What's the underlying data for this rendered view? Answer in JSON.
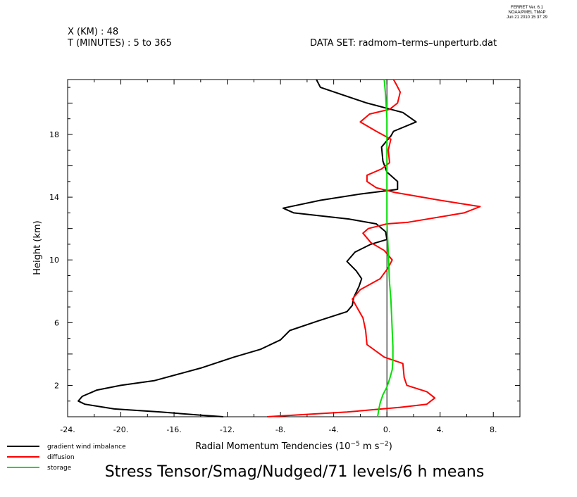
{
  "header": {
    "ferret_version": "FERRET Ver. 6.1",
    "ferret_org": "NOAA/PMEL TMAP",
    "ferret_date": "Jun 21 2010 15 37 29",
    "x_info": "X (KM) : 48",
    "t_info": "T (MINUTES) : 5 to 365",
    "dataset": "DATA SET: radmom–terms–unperturb.dat"
  },
  "chart_data": {
    "type": "line",
    "title": "Stress Tensor/Smag/Nudged/71 levels/6 h means",
    "xlabel_prefix": "Radial Momentum Tendencies (10",
    "xlabel_exp1": "−5",
    "xlabel_mid": " m s",
    "xlabel_exp2": "−2",
    "xlabel_suffix": ")",
    "ylabel": "Height (km)",
    "xlim": [
      -24,
      10
    ],
    "ylim": [
      0,
      21.5
    ],
    "x_tick_labels": [
      {
        "value": -24,
        "label": "-24."
      },
      {
        "value": -20,
        "label": "-20."
      },
      {
        "value": -16,
        "label": "-16."
      },
      {
        "value": -12,
        "label": "-12."
      },
      {
        "value": -8,
        "label": "-8."
      },
      {
        "value": -4,
        "label": "-4."
      },
      {
        "value": 0,
        "label": "0."
      },
      {
        "value": 4,
        "label": "4."
      },
      {
        "value": 8,
        "label": "8."
      }
    ],
    "y_tick_labels": [
      {
        "value": 2,
        "label": "2"
      },
      {
        "value": 6,
        "label": "6"
      },
      {
        "value": 10,
        "label": "10"
      },
      {
        "value": 14,
        "label": "14"
      },
      {
        "value": 18,
        "label": "18"
      }
    ],
    "zero_line": true,
    "legend_position": "bottom-left",
    "series": [
      {
        "name": "gradient wind imbalance",
        "color": "#000000",
        "points": [
          [
            -12.3,
            0.0
          ],
          [
            -14.0,
            0.1
          ],
          [
            -17.0,
            0.3
          ],
          [
            -20.5,
            0.5
          ],
          [
            -22.7,
            0.8
          ],
          [
            -23.2,
            1.0
          ],
          [
            -22.9,
            1.3
          ],
          [
            -21.8,
            1.7
          ],
          [
            -20.0,
            2.0
          ],
          [
            -17.5,
            2.3
          ],
          [
            -14.0,
            3.1
          ],
          [
            -11.5,
            3.8
          ],
          [
            -9.5,
            4.3
          ],
          [
            -8.0,
            4.9
          ],
          [
            -7.3,
            5.5
          ],
          [
            -5.2,
            6.1
          ],
          [
            -3.0,
            6.7
          ],
          [
            -2.6,
            7.1
          ],
          [
            -2.5,
            7.6
          ],
          [
            -2.1,
            8.3
          ],
          [
            -1.9,
            8.8
          ],
          [
            -2.3,
            9.3
          ],
          [
            -3.0,
            9.9
          ],
          [
            -2.4,
            10.5
          ],
          [
            -1.2,
            11.0
          ],
          [
            0.0,
            11.3
          ],
          [
            -0.1,
            11.8
          ],
          [
            -0.8,
            12.3
          ],
          [
            -2.8,
            12.6
          ],
          [
            -7.0,
            13.0
          ],
          [
            -7.8,
            13.3
          ],
          [
            -5.0,
            13.8
          ],
          [
            -2.0,
            14.2
          ],
          [
            0.8,
            14.5
          ],
          [
            0.8,
            15.0
          ],
          [
            0.0,
            15.6
          ],
          [
            -0.3,
            16.3
          ],
          [
            -0.4,
            17.2
          ],
          [
            0.3,
            17.9
          ],
          [
            0.5,
            18.2
          ],
          [
            2.2,
            18.8
          ],
          [
            1.2,
            19.4
          ],
          [
            -1.5,
            20.0
          ],
          [
            -5.0,
            21.0
          ],
          [
            -5.3,
            21.5
          ]
        ]
      },
      {
        "name": "diffusion",
        "color": "#ff0000",
        "points": [
          [
            -9.0,
            0.0
          ],
          [
            -3.0,
            0.3
          ],
          [
            1.0,
            0.6
          ],
          [
            3.0,
            0.8
          ],
          [
            3.6,
            1.2
          ],
          [
            3.0,
            1.6
          ],
          [
            1.5,
            2.0
          ],
          [
            1.3,
            2.5
          ],
          [
            1.2,
            3.4
          ],
          [
            -0.2,
            3.8
          ],
          [
            -1.5,
            4.6
          ],
          [
            -1.6,
            5.5
          ],
          [
            -1.8,
            6.3
          ],
          [
            -2.2,
            6.9
          ],
          [
            -2.6,
            7.5
          ],
          [
            -2.0,
            8.1
          ],
          [
            -0.5,
            8.8
          ],
          [
            0.1,
            9.5
          ],
          [
            0.4,
            10.0
          ],
          [
            -0.2,
            10.6
          ],
          [
            -1.2,
            11.1
          ],
          [
            -1.8,
            11.7
          ],
          [
            -1.4,
            12.0
          ],
          [
            0.0,
            12.3
          ],
          [
            1.6,
            12.4
          ],
          [
            5.8,
            13.0
          ],
          [
            7.0,
            13.4
          ],
          [
            4.0,
            13.8
          ],
          [
            0.6,
            14.3
          ],
          [
            -0.8,
            14.6
          ],
          [
            -1.5,
            15.0
          ],
          [
            -1.5,
            15.4
          ],
          [
            -0.4,
            15.8
          ],
          [
            0.2,
            16.2
          ],
          [
            0.1,
            17.0
          ],
          [
            0.3,
            17.7
          ],
          [
            -0.8,
            18.2
          ],
          [
            -2.0,
            18.8
          ],
          [
            -1.3,
            19.3
          ],
          [
            0.2,
            19.6
          ],
          [
            0.8,
            20.0
          ],
          [
            1.0,
            20.7
          ],
          [
            0.7,
            21.2
          ],
          [
            0.5,
            21.5
          ]
        ]
      },
      {
        "name": "storage",
        "color": "#00e000",
        "points": [
          [
            -0.7,
            0.0
          ],
          [
            -0.6,
            0.5
          ],
          [
            -0.5,
            0.9
          ],
          [
            -0.3,
            1.4
          ],
          [
            0.0,
            1.9
          ],
          [
            0.2,
            2.4
          ],
          [
            0.4,
            3.0
          ],
          [
            0.45,
            3.6
          ],
          [
            0.45,
            4.5
          ],
          [
            0.4,
            5.5
          ],
          [
            0.35,
            6.5
          ],
          [
            0.3,
            7.5
          ],
          [
            0.2,
            8.5
          ],
          [
            0.15,
            9.5
          ],
          [
            0.1,
            10.5
          ],
          [
            0.05,
            11.5
          ],
          [
            0.0,
            12.5
          ],
          [
            0.0,
            13.5
          ],
          [
            0.0,
            14.5
          ],
          [
            0.0,
            16.0
          ],
          [
            0.0,
            17.5
          ],
          [
            0.0,
            19.0
          ],
          [
            -0.1,
            20.5
          ],
          [
            -0.2,
            21.5
          ]
        ]
      }
    ]
  }
}
